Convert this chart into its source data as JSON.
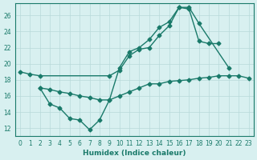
{
  "xlabel": "Humidex (Indice chaleur)",
  "bg_color": "#d8f0f0",
  "line_color": "#1a7a6a",
  "grid_color": "#b8dada",
  "xlim": [
    -0.5,
    23.5
  ],
  "ylim": [
    11.0,
    27.5
  ],
  "yticks": [
    12,
    14,
    16,
    18,
    20,
    22,
    24,
    26
  ],
  "xticks": [
    0,
    1,
    2,
    3,
    4,
    5,
    6,
    7,
    8,
    9,
    10,
    11,
    12,
    13,
    14,
    15,
    16,
    17,
    18,
    19,
    20,
    21,
    22,
    23
  ],
  "line1_x": [
    0,
    1,
    2,
    9,
    10,
    11,
    12,
    13,
    14,
    15,
    16,
    17,
    18,
    21
  ],
  "line1_y": [
    19.0,
    18.7,
    18.5,
    18.5,
    19.2,
    21.0,
    21.8,
    22.0,
    23.5,
    24.7,
    27.0,
    27.0,
    25.0,
    19.5
  ],
  "line2_x": [
    2,
    3,
    4,
    5,
    6,
    7,
    8,
    9,
    10,
    11,
    12,
    13,
    14,
    15,
    16,
    17,
    18,
    19,
    20,
    21,
    22,
    23
  ],
  "line2_y": [
    17.0,
    16.8,
    16.5,
    16.3,
    16.0,
    15.8,
    15.5,
    15.5,
    16.0,
    16.5,
    17.0,
    17.5,
    17.5,
    17.8,
    17.9,
    18.0,
    18.2,
    18.3,
    18.5,
    18.5,
    18.5,
    18.2
  ],
  "line3_x": [
    2,
    3,
    4,
    5,
    6,
    7,
    8,
    9,
    10,
    11,
    12,
    13,
    14,
    15,
    16,
    17,
    18,
    19,
    20
  ],
  "line3_y": [
    17.0,
    15.0,
    14.5,
    13.2,
    13.0,
    11.8,
    13.0,
    15.5,
    19.5,
    21.5,
    22.0,
    23.0,
    24.5,
    25.2,
    27.0,
    26.8,
    22.8,
    22.5,
    22.5
  ],
  "marker": "D",
  "marker_size": 2.5,
  "linewidth": 1.0,
  "tick_fontsize": 5.5,
  "xlabel_fontsize": 6.5
}
